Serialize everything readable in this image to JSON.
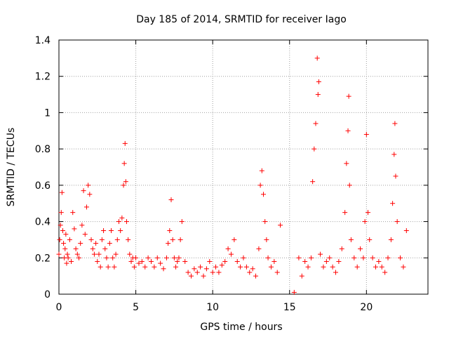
{
  "chart_data": {
    "type": "scatter",
    "title": "Day 185 of 2014, SRMTID for receiver Iago",
    "xlabel": "GPS time / hours",
    "ylabel": "SRMTID / TECUs",
    "xlim": [
      0,
      24
    ],
    "ylim": [
      0,
      1.4
    ],
    "x_ticks": [
      0,
      5,
      10,
      15,
      20
    ],
    "y_ticks": [
      0,
      0.2,
      0.4,
      0.6,
      0.8,
      1,
      1.2,
      1.4
    ],
    "x_tick_labels": [
      "0",
      "5",
      "10",
      "15",
      "20"
    ],
    "y_tick_labels": [
      "0",
      "0.2",
      "0.4",
      "0.6",
      "0.8",
      "1",
      "1.2",
      "1.4"
    ],
    "grid": true,
    "marker": "+",
    "color": "#ff0000",
    "series": [
      {
        "name": "SRMTID",
        "x": [
          0.0,
          0.05,
          0.1,
          0.15,
          0.2,
          0.25,
          0.3,
          0.35,
          0.4,
          0.45,
          0.5,
          0.55,
          0.6,
          0.7,
          0.8,
          0.9,
          1.0,
          1.1,
          1.2,
          1.3,
          1.4,
          1.5,
          1.6,
          1.7,
          1.8,
          1.9,
          2.0,
          2.1,
          2.2,
          2.3,
          2.4,
          2.5,
          2.6,
          2.7,
          2.8,
          2.9,
          3.0,
          3.1,
          3.2,
          3.3,
          3.4,
          3.5,
          3.6,
          3.7,
          3.8,
          3.9,
          4.0,
          4.1,
          4.2,
          4.25,
          4.3,
          4.35,
          4.4,
          4.5,
          4.6,
          4.7,
          4.8,
          4.9,
          5.0,
          5.2,
          5.4,
          5.6,
          5.8,
          6.0,
          6.2,
          6.4,
          6.6,
          6.8,
          7.0,
          7.1,
          7.2,
          7.3,
          7.4,
          7.5,
          7.6,
          7.7,
          7.8,
          7.9,
          8.0,
          8.2,
          8.4,
          8.6,
          8.8,
          9.0,
          9.2,
          9.4,
          9.6,
          9.8,
          10.0,
          10.2,
          10.4,
          10.6,
          10.8,
          11.0,
          11.2,
          11.4,
          11.6,
          11.8,
          12.0,
          12.2,
          12.4,
          12.6,
          12.8,
          13.0,
          13.1,
          13.2,
          13.3,
          13.4,
          13.5,
          13.6,
          13.8,
          14.0,
          14.2,
          14.4,
          15.3,
          15.6,
          15.8,
          16.0,
          16.2,
          16.4,
          16.5,
          16.6,
          16.7,
          16.8,
          16.85,
          16.9,
          17.0,
          17.2,
          17.4,
          17.6,
          17.8,
          18.0,
          18.2,
          18.4,
          18.6,
          18.7,
          18.8,
          18.85,
          18.9,
          19.0,
          19.2,
          19.4,
          19.6,
          19.8,
          19.9,
          20.0,
          20.1,
          20.2,
          20.4,
          20.6,
          20.8,
          21.0,
          21.2,
          21.4,
          21.6,
          21.7,
          21.8,
          21.85,
          21.9,
          22.0,
          22.2,
          22.4,
          22.6
        ],
        "y": [
          0.22,
          0.3,
          0.38,
          0.45,
          0.56,
          0.35,
          0.28,
          0.2,
          0.25,
          0.33,
          0.17,
          0.22,
          0.2,
          0.3,
          0.18,
          0.45,
          0.36,
          0.25,
          0.22,
          0.2,
          0.28,
          0.38,
          0.57,
          0.33,
          0.48,
          0.6,
          0.55,
          0.3,
          0.25,
          0.22,
          0.28,
          0.18,
          0.22,
          0.15,
          0.3,
          0.35,
          0.25,
          0.2,
          0.15,
          0.28,
          0.35,
          0.2,
          0.15,
          0.22,
          0.3,
          0.4,
          0.35,
          0.42,
          0.6,
          0.72,
          0.83,
          0.62,
          0.4,
          0.3,
          0.22,
          0.18,
          0.2,
          0.15,
          0.2,
          0.17,
          0.18,
          0.15,
          0.2,
          0.18,
          0.15,
          0.2,
          0.17,
          0.14,
          0.2,
          0.28,
          0.35,
          0.52,
          0.3,
          0.2,
          0.15,
          0.18,
          0.2,
          0.3,
          0.4,
          0.18,
          0.12,
          0.1,
          0.14,
          0.12,
          0.15,
          0.1,
          0.14,
          0.18,
          0.12,
          0.15,
          0.12,
          0.16,
          0.18,
          0.25,
          0.22,
          0.3,
          0.18,
          0.15,
          0.2,
          0.15,
          0.12,
          0.14,
          0.1,
          0.25,
          0.6,
          0.68,
          0.55,
          0.4,
          0.3,
          0.2,
          0.15,
          0.18,
          0.12,
          0.38,
          0.01,
          0.2,
          0.1,
          0.18,
          0.15,
          0.2,
          0.62,
          0.8,
          0.94,
          1.3,
          1.1,
          1.17,
          0.22,
          0.15,
          0.18,
          0.2,
          0.15,
          0.12,
          0.18,
          0.25,
          0.45,
          0.72,
          0.9,
          1.09,
          0.6,
          0.3,
          0.2,
          0.15,
          0.25,
          0.2,
          0.4,
          0.88,
          0.45,
          0.3,
          0.2,
          0.15,
          0.18,
          0.15,
          0.12,
          0.2,
          0.3,
          0.5,
          0.77,
          0.94,
          0.65,
          0.4,
          0.2,
          0.15,
          0.35
        ]
      }
    ]
  }
}
